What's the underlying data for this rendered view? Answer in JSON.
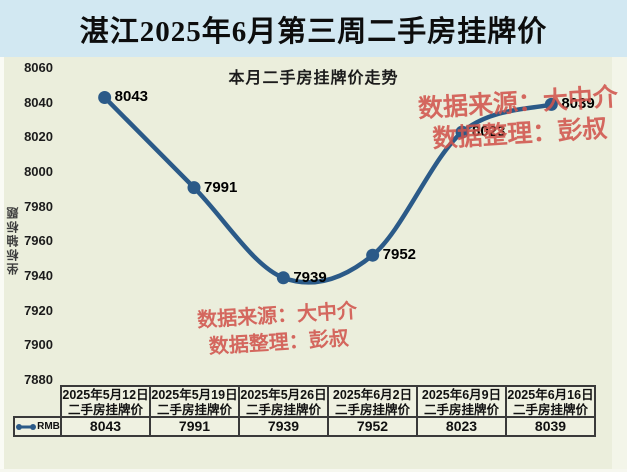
{
  "page": {
    "title": "湛江2025年6月第三周二手房挂牌价"
  },
  "chart": {
    "title": "本月二手房挂牌价走势",
    "y_axis_title": "坐标轴标题",
    "legend_label": "RMB",
    "watermark_top": {
      "line1": "数据来源：大中介",
      "line2": "数据整理：彭叔"
    },
    "watermark_bottom": {
      "line1": "数据来源：大中介",
      "line2": "数据整理：彭叔"
    }
  },
  "chart_data": {
    "type": "line",
    "title": "本月二手房挂牌价走势",
    "ylabel": "坐标轴标题",
    "categories": [
      "2025年5月12日二手房挂牌价",
      "2025年5月19日二手房挂牌价",
      "2025年5月26日二手房挂牌价",
      "2025年6月2日二手房挂牌价",
      "2025年6月9日二手房挂牌价",
      "2025年6月16日二手房挂牌价"
    ],
    "series": [
      {
        "name": "RMB",
        "values": [
          8043,
          7991,
          7939,
          7952,
          8023,
          8039
        ]
      }
    ],
    "point_labels": [
      "8043",
      "7991",
      "7939",
      "7952",
      "8023",
      "8039"
    ],
    "y_ticks": [
      8060,
      8040,
      8020,
      8000,
      7980,
      7960,
      7940,
      7920,
      7900,
      7880
    ],
    "ylim": [
      7880,
      8060
    ],
    "grid": false,
    "legend_position": "bottom-left",
    "smooth": true
  },
  "table": {
    "legend_label": "RMB",
    "headers": [
      "2025年5月12日二手房挂牌价",
      "2025年5月19日二手房挂牌价",
      "2025年5月26日二手房挂牌价",
      "2025年6月2日二手房挂牌价",
      "2025年6月9日二手房挂牌价",
      "2025年6月16日二手房挂牌价"
    ],
    "values": [
      "8043",
      "7991",
      "7939",
      "7952",
      "8023",
      "8039"
    ]
  },
  "colors": {
    "line": "#2b5a88",
    "watermark": "#d0544c",
    "title_band_bg": "#d2e8f2",
    "chart_bg": "#ebeedc",
    "table_border": "#3a3a3a"
  }
}
